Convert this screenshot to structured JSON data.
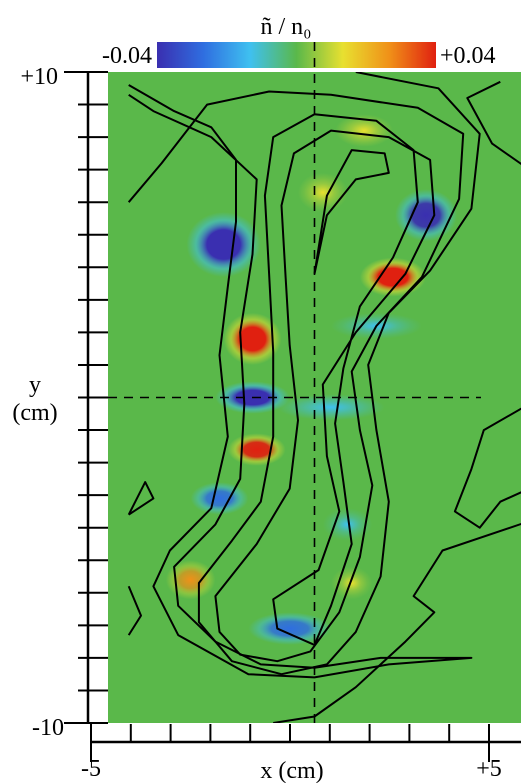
{
  "chart_data": {
    "type": "heatmap",
    "title": "ñ / n₀",
    "xlabel": "x (cm)",
    "ylabel": "y\n(cm)",
    "xlim": [
      -5,
      5
    ],
    "ylim": [
      -10,
      10
    ],
    "x_tick_labels": [
      "-5",
      "+5"
    ],
    "y_tick_labels": [
      "+10",
      "-10"
    ],
    "colorbar": {
      "min_label": "-0.04",
      "max_label": "+0.04",
      "min": -0.04,
      "max": 0.04,
      "colors": [
        "#3a2fb0",
        "#2f6ee0",
        "#3fc0f0",
        "#5ab84a",
        "#e8e030",
        "#f09018",
        "#e02010"
      ],
      "position": "top"
    },
    "background_color": "#5ab84a",
    "blobs": [
      {
        "x": -2.2,
        "y": 4.7,
        "amp": -0.04,
        "sx": 0.9,
        "sy": 1.0
      },
      {
        "x": 2.7,
        "y": 5.6,
        "amp": -0.036,
        "sx": 0.75,
        "sy": 0.8
      },
      {
        "x": 1.9,
        "y": 3.7,
        "amp": 0.04,
        "sx": 0.8,
        "sy": 0.6
      },
      {
        "x": -1.5,
        "y": 1.8,
        "amp": 0.04,
        "sx": 0.7,
        "sy": 0.8
      },
      {
        "x": 1.5,
        "y": 2.2,
        "amp": -0.012,
        "sx": 1.1,
        "sy": 0.4
      },
      {
        "x": -1.5,
        "y": 0.0,
        "amp": -0.04,
        "sx": 0.9,
        "sy": 0.5
      },
      {
        "x": 0.4,
        "y": -0.3,
        "amp": -0.016,
        "sx": 1.3,
        "sy": 0.4
      },
      {
        "x": -1.4,
        "y": -1.6,
        "amp": 0.036,
        "sx": 0.7,
        "sy": 0.5
      },
      {
        "x": -2.3,
        "y": -3.1,
        "amp": -0.032,
        "sx": 0.7,
        "sy": 0.5
      },
      {
        "x": -3.0,
        "y": -5.6,
        "amp": 0.024,
        "sx": 0.6,
        "sy": 0.6
      },
      {
        "x": -0.6,
        "y": -7.1,
        "amp": -0.032,
        "sx": 1.0,
        "sy": 0.5
      },
      {
        "x": 1.2,
        "y": 8.2,
        "amp": 0.014,
        "sx": 0.7,
        "sy": 0.5
      },
      {
        "x": 0.2,
        "y": 6.3,
        "amp": 0.012,
        "sx": 0.6,
        "sy": 0.6
      },
      {
        "x": 0.8,
        "y": -3.9,
        "amp": -0.01,
        "sx": 0.6,
        "sy": 0.5
      },
      {
        "x": 0.9,
        "y": -5.7,
        "amp": 0.01,
        "sx": 0.5,
        "sy": 0.5
      }
    ],
    "contours": [
      [
        [
          -4.5,
          9.3
        ],
        [
          -3.9,
          8.8
        ],
        [
          -2.5,
          8.0
        ],
        [
          -1.4,
          6.7
        ],
        [
          -1.5,
          4.4
        ],
        [
          -1.8,
          2.0
        ],
        [
          -1.7,
          -0.2
        ],
        [
          -1.8,
          -2.5
        ],
        [
          -2.4,
          -3.9
        ],
        [
          -3.4,
          -5.2
        ],
        [
          -3.3,
          -6.4
        ],
        [
          -2.4,
          -7.5
        ],
        [
          -1.3,
          -8.2
        ],
        [
          0.0,
          -8.3
        ],
        [
          1.6,
          -8.0
        ],
        [
          3.8,
          -8.0
        ],
        [
          1.8,
          -8.2
        ],
        [
          0.0,
          -8.6
        ],
        [
          -1.6,
          -8.5
        ],
        [
          -3.3,
          -7.3
        ],
        [
          -3.9,
          -5.8
        ],
        [
          -3.5,
          -4.7
        ],
        [
          -2.5,
          -3.4
        ],
        [
          -2.1,
          -1.2
        ],
        [
          -2.3,
          1.3
        ],
        [
          -2.1,
          3.4
        ],
        [
          -1.9,
          5.4
        ],
        [
          -1.9,
          7.3
        ],
        [
          -2.5,
          8.3
        ],
        [
          -3.4,
          8.8
        ],
        [
          -4.5,
          9.6
        ]
      ],
      [
        [
          -4.5,
          6.0
        ],
        [
          -3.7,
          7.2
        ],
        [
          -2.6,
          9.0
        ],
        [
          -1.1,
          9.4
        ],
        [
          0.4,
          9.3
        ],
        [
          2.5,
          8.9
        ],
        [
          3.6,
          8.1
        ],
        [
          3.5,
          6.1
        ],
        [
          2.6,
          3.7
        ],
        [
          1.5,
          2.2
        ],
        [
          0.9,
          0.8
        ],
        [
          1.1,
          -1.0
        ],
        [
          1.4,
          -2.7
        ],
        [
          1.1,
          -4.9
        ],
        [
          0.6,
          -6.6
        ],
        [
          -0.1,
          -7.8
        ],
        [
          -0.9,
          -8.1
        ],
        [
          -1.8,
          -7.9
        ],
        [
          -2.3,
          -7.2
        ],
        [
          -2.4,
          -6.1
        ],
        [
          -1.4,
          -4.5
        ],
        [
          -0.6,
          -2.8
        ],
        [
          -0.4,
          -0.7
        ],
        [
          -0.6,
          1.6
        ],
        [
          -0.7,
          3.7
        ],
        [
          -0.8,
          5.9
        ],
        [
          -0.5,
          7.5
        ],
        [
          0.4,
          8.2
        ],
        [
          1.8,
          8.0
        ],
        [
          2.8,
          7.3
        ],
        [
          2.9,
          5.6
        ],
        [
          2.2,
          3.8
        ],
        [
          1.0,
          2.0
        ],
        [
          0.2,
          0.4
        ],
        [
          0.3,
          -1.8
        ],
        [
          0.6,
          -3.5
        ],
        [
          0.1,
          -5.3
        ],
        [
          -1.0,
          -6.2
        ],
        [
          -0.9,
          -7.1
        ],
        [
          0.0,
          -7.6
        ],
        [
          0.4,
          -6.4
        ],
        [
          0.9,
          -4.5
        ],
        [
          0.7,
          -2.6
        ],
        [
          0.5,
          -0.8
        ],
        [
          0.7,
          0.9
        ],
        [
          1.1,
          2.8
        ],
        [
          1.9,
          4.3
        ],
        [
          2.5,
          6.0
        ],
        [
          2.4,
          7.6
        ],
        [
          1.5,
          8.5
        ],
        [
          0.0,
          8.7
        ],
        [
          -1.0,
          8.0
        ],
        [
          -1.2,
          6.2
        ],
        [
          -1.1,
          3.8
        ],
        [
          -1.0,
          1.4
        ],
        [
          -1.0,
          -1.2
        ],
        [
          -1.3,
          -3.2
        ],
        [
          -2.0,
          -4.4
        ],
        [
          -2.8,
          -5.7
        ],
        [
          -2.8,
          -6.9
        ],
        [
          -2.0,
          -8.1
        ],
        [
          -0.8,
          -8.5
        ],
        [
          0.3,
          -8.2
        ],
        [
          1.0,
          -7.2
        ],
        [
          1.6,
          -5.5
        ],
        [
          1.8,
          -3.2
        ],
        [
          1.5,
          -1.0
        ],
        [
          1.3,
          1.0
        ],
        [
          1.8,
          2.6
        ],
        [
          2.8,
          3.9
        ],
        [
          3.8,
          5.8
        ],
        [
          4.0,
          8.1
        ],
        [
          3.0,
          9.5
        ],
        [
          1.0,
          10.0
        ]
      ],
      [
        [
          0.0,
          3.8
        ],
        [
          0.3,
          6.2
        ],
        [
          0.9,
          7.6
        ],
        [
          1.7,
          7.5
        ],
        [
          1.8,
          6.9
        ],
        [
          1.0,
          6.7
        ],
        [
          0.3,
          5.6
        ],
        [
          0.0,
          3.8
        ]
      ],
      [
        [
          4.5,
          9.7
        ],
        [
          3.7,
          9.2
        ],
        [
          4.3,
          7.8
        ],
        [
          5.2,
          7.0
        ]
      ],
      [
        [
          5.2,
          -0.2
        ],
        [
          4.1,
          -1.0
        ],
        [
          3.8,
          -2.2
        ],
        [
          3.4,
          -3.5
        ],
        [
          4.0,
          -4.0
        ],
        [
          4.5,
          -3.2
        ],
        [
          5.2,
          -2.8
        ]
      ],
      [
        [
          -4.5,
          -3.6
        ],
        [
          -4.1,
          -2.6
        ],
        [
          -3.9,
          -3.1
        ],
        [
          -4.5,
          -3.6
        ]
      ],
      [
        [
          -4.5,
          -5.8
        ],
        [
          -4.2,
          -6.7
        ],
        [
          -4.5,
          -7.3
        ]
      ],
      [
        [
          5.2,
          -3.8
        ],
        [
          3.1,
          -4.7
        ],
        [
          2.4,
          -6.1
        ],
        [
          2.9,
          -6.6
        ],
        [
          2.2,
          -7.5
        ],
        [
          1.0,
          -8.9
        ],
        [
          0.0,
          -9.8
        ],
        [
          -1.0,
          -10.0
        ]
      ]
    ],
    "crosshair": {
      "x": 0.0,
      "y": 0.0
    }
  }
}
